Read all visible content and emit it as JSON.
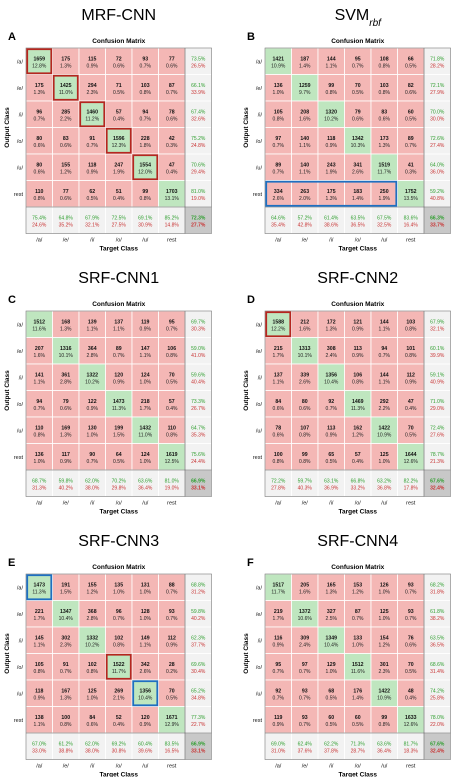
{
  "row_labels": [
    "/a/",
    "/e/",
    "/i/",
    "/o/",
    "/u/",
    "rest"
  ],
  "col_labels": [
    "/a/",
    "/e/",
    "/i/",
    "/o/",
    "/u/",
    "rest"
  ],
  "colors": {
    "correct": "#bfe6bf",
    "incorrect": "#f4b7b5",
    "summary": "#f2f2f2",
    "total": "#c8c8c8",
    "green_text": "#2e9e2e",
    "red_text": "#c83232",
    "box_red": "#b5261f",
    "box_blue": "#1f6fc0"
  },
  "chart_data": [
    {
      "type": "heatmap",
      "panel": "A",
      "title": "MRF-CNN",
      "subtitle": "Confusion Matrix",
      "xlabel": "Target Class",
      "ylabel": "Output Class",
      "counts": [
        [
          1659,
          175,
          115,
          72,
          93,
          77
        ],
        [
          175,
          1425,
          294,
          71,
          103,
          87
        ],
        [
          96,
          285,
          1460,
          57,
          94,
          78
        ],
        [
          80,
          83,
          91,
          1596,
          228,
          42
        ],
        [
          80,
          155,
          118,
          247,
          1554,
          47
        ],
        [
          110,
          77,
          62,
          51,
          99,
          1703
        ]
      ],
      "pcts": [
        [
          "12.8%",
          "1.3%",
          "0.9%",
          "0.6%",
          "0.7%",
          "0.6%"
        ],
        [
          "1.3%",
          "11.0%",
          "2.3%",
          "0.5%",
          "0.8%",
          "0.7%"
        ],
        [
          "0.7%",
          "2.2%",
          "11.2%",
          "0.4%",
          "0.7%",
          "0.6%"
        ],
        [
          "0.6%",
          "0.6%",
          "0.7%",
          "12.3%",
          "1.8%",
          "0.3%"
        ],
        [
          "0.6%",
          "1.2%",
          "0.9%",
          "1.9%",
          "12.0%",
          "0.4%"
        ],
        [
          "0.8%",
          "0.6%",
          "0.5%",
          "0.4%",
          "0.8%",
          "13.1%"
        ]
      ],
      "row_summary": [
        [
          "73.5%",
          "26.5%"
        ],
        [
          "66.1%",
          "33.9%"
        ],
        [
          "67.4%",
          "32.6%"
        ],
        [
          "75.2%",
          "24.8%"
        ],
        [
          "70.6%",
          "29.4%"
        ],
        [
          "81.0%",
          "19.0%"
        ]
      ],
      "col_summary": [
        [
          "75.4%",
          "24.6%"
        ],
        [
          "64.8%",
          "35.2%"
        ],
        [
          "67.9%",
          "32.1%"
        ],
        [
          "72.5%",
          "27.5%"
        ],
        [
          "69.1%",
          "30.9%"
        ],
        [
          "85.2%",
          "14.8%"
        ]
      ],
      "total": [
        "72.3%",
        "27.7%"
      ],
      "highlights": [
        {
          "row": 0,
          "col": 0,
          "color": "red"
        },
        {
          "row": 1,
          "col": 1,
          "color": "red"
        },
        {
          "row": 2,
          "col": 2,
          "color": "red"
        },
        {
          "row": 3,
          "col": 3,
          "color": "red"
        },
        {
          "row": 4,
          "col": 4,
          "color": "red"
        }
      ]
    },
    {
      "type": "heatmap",
      "panel": "B",
      "title": "SVM",
      "title_sub": "rbf",
      "subtitle": "Confusion Matrix",
      "xlabel": "Target Class",
      "ylabel": "Output Class",
      "counts": [
        [
          1421,
          187,
          144,
          95,
          108,
          66
        ],
        [
          136,
          1259,
          99,
          70,
          103,
          82
        ],
        [
          105,
          208,
          1320,
          79,
          83,
          60
        ],
        [
          97,
          140,
          118,
          1342,
          173,
          89
        ],
        [
          89,
          140,
          243,
          341,
          1519,
          41
        ],
        [
          334,
          263,
          175,
          183,
          250,
          1752
        ]
      ],
      "pcts": [
        [
          "10.9%",
          "1.4%",
          "1.1%",
          "0.7%",
          "0.8%",
          "0.5%"
        ],
        [
          "1.0%",
          "9.7%",
          "0.8%",
          "0.5%",
          "0.8%",
          "0.6%"
        ],
        [
          "0.8%",
          "1.6%",
          "10.2%",
          "0.6%",
          "0.6%",
          "0.5%"
        ],
        [
          "0.7%",
          "1.1%",
          "0.9%",
          "10.3%",
          "1.3%",
          "0.7%"
        ],
        [
          "0.7%",
          "1.1%",
          "1.9%",
          "2.6%",
          "11.7%",
          "0.3%"
        ],
        [
          "2.6%",
          "2.0%",
          "1.3%",
          "1.4%",
          "1.9%",
          "13.5%"
        ]
      ],
      "row_summary": [
        [
          "71.8%",
          "28.2%"
        ],
        [
          "72.1%",
          "27.9%"
        ],
        [
          "70.0%",
          "30.0%"
        ],
        [
          "72.6%",
          "27.4%"
        ],
        [
          "64.0%",
          "36.0%"
        ],
        [
          "59.2%",
          "40.8%"
        ]
      ],
      "col_summary": [
        [
          "64.6%",
          "35.4%"
        ],
        [
          "57.2%",
          "42.8%"
        ],
        [
          "61.4%",
          "38.6%"
        ],
        [
          "63.5%",
          "36.5%"
        ],
        [
          "67.5%",
          "32.5%"
        ],
        [
          "83.6%",
          "16.4%"
        ]
      ],
      "total": [
        "66.3%",
        "33.7%"
      ],
      "highlights": [
        {
          "row": 5,
          "col": 0,
          "col_end": 4,
          "color": "blue"
        }
      ]
    },
    {
      "type": "heatmap",
      "panel": "C",
      "title": "SRF-CNN1",
      "subtitle": "Confusion Matrix",
      "xlabel": "Target Class",
      "ylabel": "Output Class",
      "counts": [
        [
          1512,
          168,
          139,
          137,
          119,
          95
        ],
        [
          207,
          1316,
          364,
          89,
          147,
          106
        ],
        [
          141,
          361,
          1322,
          120,
          124,
          70
        ],
        [
          94,
          79,
          122,
          1473,
          218,
          57
        ],
        [
          110,
          169,
          130,
          199,
          1432,
          110
        ],
        [
          136,
          117,
          90,
          64,
          124,
          1619
        ]
      ],
      "pcts": [
        [
          "11.6%",
          "1.3%",
          "1.1%",
          "1.1%",
          "0.9%",
          "0.7%"
        ],
        [
          "1.6%",
          "10.1%",
          "2.8%",
          "0.7%",
          "1.1%",
          "0.8%"
        ],
        [
          "1.1%",
          "2.8%",
          "10.2%",
          "0.9%",
          "1.0%",
          "0.5%"
        ],
        [
          "0.7%",
          "0.6%",
          "0.9%",
          "11.3%",
          "1.7%",
          "0.4%"
        ],
        [
          "0.8%",
          "1.3%",
          "1.0%",
          "1.5%",
          "11.0%",
          "0.8%"
        ],
        [
          "1.0%",
          "0.9%",
          "0.7%",
          "0.5%",
          "1.0%",
          "12.5%"
        ]
      ],
      "row_summary": [
        [
          "69.7%",
          "30.3%"
        ],
        [
          "59.0%",
          "41.0%"
        ],
        [
          "59.6%",
          "40.4%"
        ],
        [
          "73.3%",
          "26.7%"
        ],
        [
          "64.7%",
          "35.3%"
        ],
        [
          "75.6%",
          "24.4%"
        ]
      ],
      "col_summary": [
        [
          "68.7%",
          "31.3%"
        ],
        [
          "59.8%",
          "40.2%"
        ],
        [
          "62.0%",
          "38.0%"
        ],
        [
          "70.2%",
          "29.8%"
        ],
        [
          "63.6%",
          "36.4%"
        ],
        [
          "81.0%",
          "19.0%"
        ]
      ],
      "total": [
        "66.9%",
        "33.1%"
      ],
      "highlights": []
    },
    {
      "type": "heatmap",
      "panel": "D",
      "title": "SRF-CNN2",
      "subtitle": "Confusion Matrix",
      "xlabel": "Target Class",
      "ylabel": "Output Class",
      "counts": [
        [
          1588,
          212,
          172,
          121,
          144,
          103
        ],
        [
          215,
          1313,
          308,
          113,
          94,
          101
        ],
        [
          137,
          339,
          1356,
          106,
          144,
          112
        ],
        [
          84,
          80,
          92,
          1469,
          292,
          47
        ],
        [
          78,
          107,
          113,
          162,
          1422,
          70
        ],
        [
          100,
          99,
          65,
          57,
          125,
          1644
        ]
      ],
      "pcts": [
        [
          "12.2%",
          "1.6%",
          "1.3%",
          "0.9%",
          "1.1%",
          "0.8%"
        ],
        [
          "1.7%",
          "10.1%",
          "2.4%",
          "0.9%",
          "0.7%",
          "0.8%"
        ],
        [
          "1.1%",
          "2.6%",
          "10.4%",
          "0.8%",
          "1.1%",
          "0.9%"
        ],
        [
          "0.6%",
          "0.6%",
          "0.7%",
          "11.3%",
          "2.2%",
          "0.4%"
        ],
        [
          "0.6%",
          "0.8%",
          "0.9%",
          "1.2%",
          "10.9%",
          "0.5%"
        ],
        [
          "0.8%",
          "0.8%",
          "0.5%",
          "0.4%",
          "1.0%",
          "12.6%"
        ]
      ],
      "row_summary": [
        [
          "67.9%",
          "32.1%"
        ],
        [
          "60.1%",
          "39.9%"
        ],
        [
          "59.1%",
          "40.9%"
        ],
        [
          "71.0%",
          "29.0%"
        ],
        [
          "72.4%",
          "27.6%"
        ],
        [
          "78.7%",
          "21.3%"
        ]
      ],
      "col_summary": [
        [
          "72.2%",
          "27.8%"
        ],
        [
          "59.7%",
          "40.3%"
        ],
        [
          "63.1%",
          "36.9%"
        ],
        [
          "66.8%",
          "33.2%"
        ],
        [
          "63.2%",
          "36.8%"
        ],
        [
          "82.2%",
          "17.8%"
        ]
      ],
      "total": [
        "67.6%",
        "32.4%"
      ],
      "highlights": [
        {
          "row": 0,
          "col": 0,
          "color": "red"
        }
      ]
    },
    {
      "type": "heatmap",
      "panel": "E",
      "title": "SRF-CNN3",
      "subtitle": "Confusion Matrix",
      "xlabel": "Target Class",
      "ylabel": "Output Class",
      "counts": [
        [
          1473,
          191,
          155,
          135,
          131,
          88
        ],
        [
          221,
          1347,
          368,
          96,
          128,
          93
        ],
        [
          145,
          302,
          1332,
          102,
          149,
          112
        ],
        [
          105,
          91,
          102,
          1522,
          342,
          28
        ],
        [
          118,
          167,
          125,
          269,
          1356,
          70
        ],
        [
          138,
          100,
          84,
          52,
          120,
          1671
        ]
      ],
      "pcts": [
        [
          "11.3%",
          "1.5%",
          "1.2%",
          "1.0%",
          "1.0%",
          "0.7%"
        ],
        [
          "1.7%",
          "10.4%",
          "2.8%",
          "0.7%",
          "1.0%",
          "0.7%"
        ],
        [
          "1.1%",
          "2.3%",
          "10.2%",
          "0.8%",
          "1.1%",
          "0.9%"
        ],
        [
          "0.8%",
          "0.7%",
          "0.8%",
          "11.7%",
          "2.6%",
          "0.2%"
        ],
        [
          "0.9%",
          "1.3%",
          "1.0%",
          "2.1%",
          "10.4%",
          "0.5%"
        ],
        [
          "1.1%",
          "0.8%",
          "0.6%",
          "0.4%",
          "0.9%",
          "12.9%"
        ]
      ],
      "row_summary": [
        [
          "68.8%",
          "31.2%"
        ],
        [
          "59.8%",
          "40.2%"
        ],
        [
          "62.3%",
          "37.7%"
        ],
        [
          "69.6%",
          "30.4%"
        ],
        [
          "65.2%",
          "34.8%"
        ],
        [
          "77.3%",
          "22.7%"
        ]
      ],
      "col_summary": [
        [
          "67.0%",
          "33.0%"
        ],
        [
          "61.2%",
          "38.8%"
        ],
        [
          "62.0%",
          "38.0%"
        ],
        [
          "69.2%",
          "30.8%"
        ],
        [
          "60.4%",
          "39.6%"
        ],
        [
          "83.5%",
          "16.5%"
        ]
      ],
      "total": [
        "66.9%",
        "33.1%"
      ],
      "highlights": [
        {
          "row": 0,
          "col": 0,
          "color": "blue"
        },
        {
          "row": 3,
          "col": 3,
          "color": "red"
        },
        {
          "row": 4,
          "col": 4,
          "color": "blue"
        }
      ]
    },
    {
      "type": "heatmap",
      "panel": "F",
      "title": "SRF-CNN4",
      "subtitle": "Confusion Matrix",
      "xlabel": "Target Class",
      "ylabel": "Output Class",
      "counts": [
        [
          1517,
          205,
          165,
          153,
          126,
          93
        ],
        [
          219,
          1372,
          327,
          87,
          125,
          93
        ],
        [
          116,
          309,
          1349,
          133,
          154,
          76
        ],
        [
          95,
          97,
          129,
          1512,
          301,
          70
        ],
        [
          92,
          93,
          68,
          176,
          1422,
          48
        ],
        [
          119,
          93,
          60,
          60,
          99,
          1633
        ]
      ],
      "pcts": [
        [
          "11.7%",
          "1.6%",
          "1.3%",
          "1.2%",
          "1.0%",
          "0.7%"
        ],
        [
          "1.7%",
          "10.6%",
          "2.5%",
          "0.7%",
          "1.0%",
          "0.7%"
        ],
        [
          "0.9%",
          "2.4%",
          "10.4%",
          "1.0%",
          "1.2%",
          "0.6%"
        ],
        [
          "0.7%",
          "0.7%",
          "1.0%",
          "11.6%",
          "2.3%",
          "0.5%"
        ],
        [
          "0.7%",
          "0.7%",
          "0.5%",
          "1.4%",
          "10.9%",
          "0.4%"
        ],
        [
          "0.9%",
          "0.7%",
          "0.5%",
          "0.5%",
          "0.8%",
          "12.6%"
        ]
      ],
      "row_summary": [
        [
          "68.2%",
          "31.8%"
        ],
        [
          "61.8%",
          "38.2%"
        ],
        [
          "63.5%",
          "36.5%"
        ],
        [
          "68.6%",
          "31.4%"
        ],
        [
          "74.2%",
          "25.8%"
        ],
        [
          "78.0%",
          "22.0%"
        ]
      ],
      "col_summary": [
        [
          "69.0%",
          "31.0%"
        ],
        [
          "62.4%",
          "37.6%"
        ],
        [
          "62.2%",
          "37.8%"
        ],
        [
          "71.3%",
          "28.7%"
        ],
        [
          "63.6%",
          "36.4%"
        ],
        [
          "81.7%",
          "18.3%"
        ]
      ],
      "total": [
        "67.6%",
        "32.4%"
      ],
      "highlights": []
    }
  ]
}
